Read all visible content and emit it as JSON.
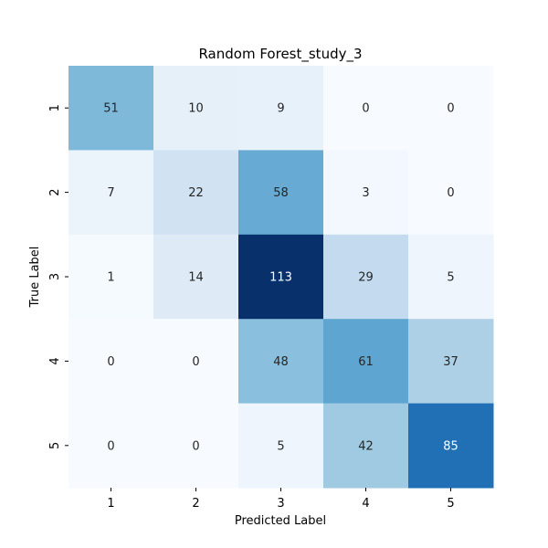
{
  "chart_data": {
    "type": "heatmap",
    "title": "Random Forest_study_3",
    "xlabel": "Predicted Label",
    "ylabel": "True Label",
    "x_categories": [
      "1",
      "2",
      "3",
      "4",
      "5"
    ],
    "y_categories": [
      "1",
      "2",
      "3",
      "4",
      "5"
    ],
    "values": [
      [
        51,
        10,
        9,
        0,
        0
      ],
      [
        7,
        22,
        58,
        3,
        0
      ],
      [
        1,
        14,
        113,
        29,
        5
      ],
      [
        0,
        0,
        48,
        61,
        37
      ],
      [
        0,
        0,
        5,
        42,
        85
      ]
    ],
    "colormap": "Blues",
    "vmin": 0,
    "vmax": 113,
    "colorbar": false,
    "colors": {
      "low": "#f7fbff",
      "high": "#08306b",
      "text_dark": "#262626",
      "text_light": "#ffffff"
    }
  }
}
